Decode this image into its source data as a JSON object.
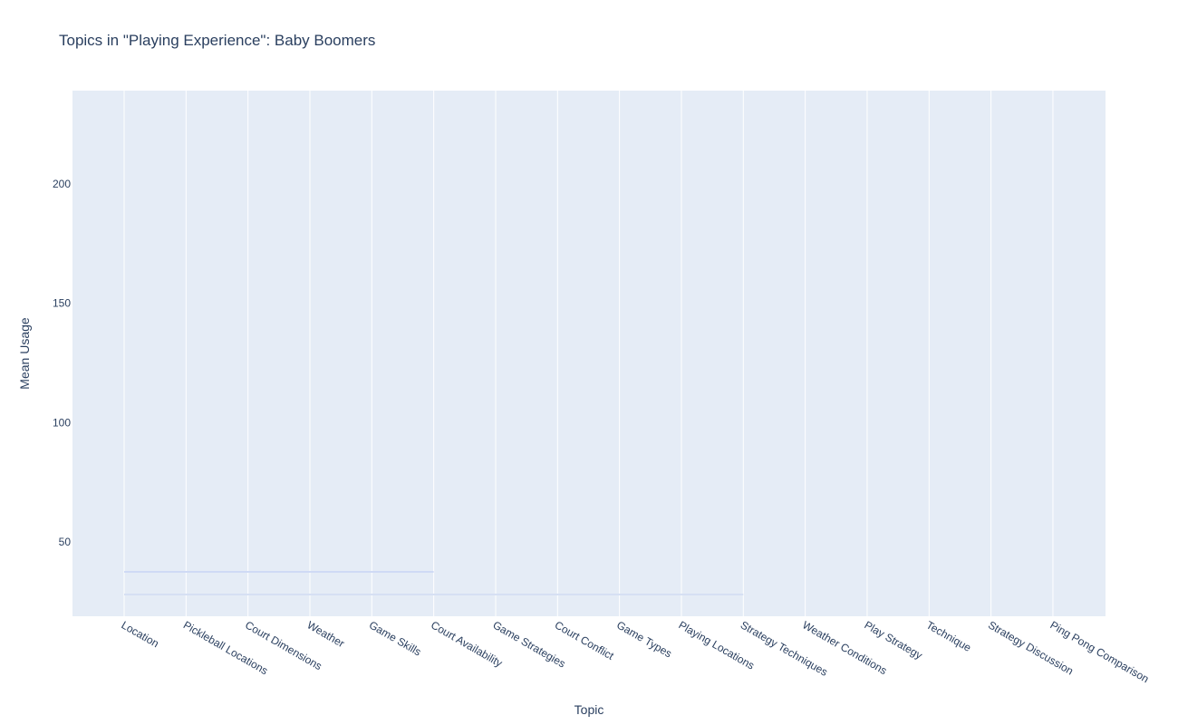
{
  "chart_data": {
    "type": "line",
    "title": "Topics in \"Playing Experience\": Baby Boomers",
    "x_label": "Topic",
    "y_label": "Mean Usage",
    "categories": [
      "Location",
      "Pickleball Locations",
      "Court Dimensions",
      "Weather",
      "Game Skills",
      "Court Availability",
      "Game Strategies",
      "Court Conflict",
      "Game Types",
      "Playing Locations",
      "Strategy Techniques",
      "Weather Conditions",
      "Play Strategy",
      "Technique",
      "Strategy Discussion",
      "Ping Pong Comparison"
    ],
    "series": [
      {
        "color": "#cfdaf5",
        "values": [
          37.5,
          37.5,
          37.5,
          37.5,
          37.5,
          37.5,
          null,
          null,
          null,
          null,
          null,
          null,
          null,
          null,
          null,
          null
        ]
      },
      {
        "color": "#d6e0f3",
        "values": [
          28,
          28,
          28,
          28,
          28,
          28,
          28,
          28,
          28,
          28,
          28,
          null,
          null,
          null,
          null,
          null
        ]
      }
    ],
    "ylim": [
      18.9,
      239.1
    ],
    "yticks": [
      50,
      100,
      150,
      200
    ],
    "grid": "x"
  }
}
